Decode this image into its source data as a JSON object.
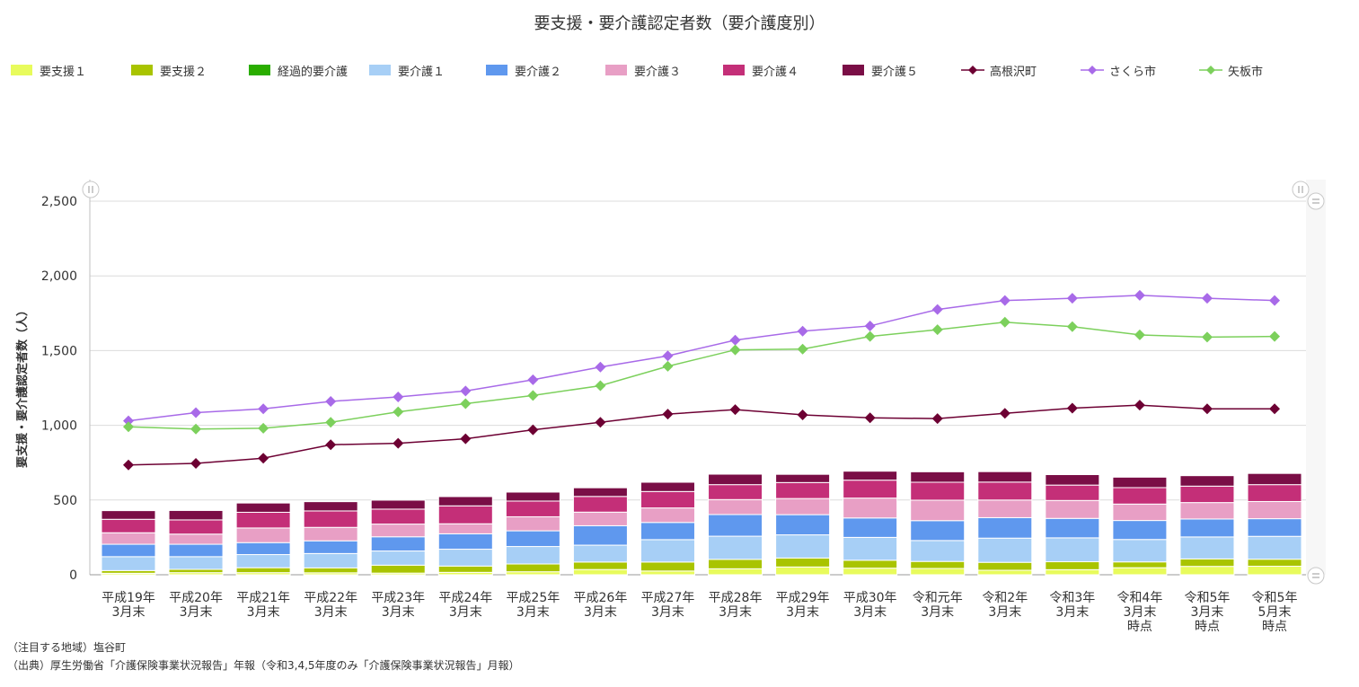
{
  "chart_data": {
    "type": "bar",
    "title": "要支援・要介護認定者数（要介護度別）",
    "ylabel": "要支援・要介護認定者数（人）",
    "xlabel": "",
    "ylim": [
      0,
      2500
    ],
    "yticks": [
      0,
      500,
      1000,
      1500,
      2000,
      2500
    ],
    "ytick_labels": [
      "0",
      "500",
      "1,000",
      "1,500",
      "2,000",
      "2,500"
    ],
    "grid": true,
    "legend": "top",
    "stacked": true,
    "categories": [
      [
        "平成19年",
        "3月末"
      ],
      [
        "平成20年",
        "3月末"
      ],
      [
        "平成21年",
        "3月末"
      ],
      [
        "平成22年",
        "3月末"
      ],
      [
        "平成23年",
        "3月末"
      ],
      [
        "平成24年",
        "3月末"
      ],
      [
        "平成25年",
        "3月末"
      ],
      [
        "平成26年",
        "3月末"
      ],
      [
        "平成27年",
        "3月末"
      ],
      [
        "平成28年",
        "3月末"
      ],
      [
        "平成29年",
        "3月末"
      ],
      [
        "平成30年",
        "3月末"
      ],
      [
        "令和元年",
        "3月末"
      ],
      [
        "令和2年",
        "3月末"
      ],
      [
        "令和3年",
        "3月末"
      ],
      [
        "令和4年",
        "3月末",
        "時点"
      ],
      [
        "令和5年",
        "3月末",
        "時点"
      ],
      [
        "令和5年",
        "5月末",
        "時点"
      ]
    ],
    "series": [
      {
        "name": "要支援１",
        "color": "#e8fb5c",
        "values": [
          10,
          14,
          14,
          13,
          11,
          16,
          20,
          35,
          25,
          40,
          52,
          44,
          42,
          30,
          34,
          47,
          56,
          57
        ]
      },
      {
        "name": "要支援２",
        "color": "#a9c400",
        "values": [
          18,
          22,
          33,
          33,
          53,
          42,
          52,
          50,
          60,
          63,
          60,
          53,
          47,
          53,
          53,
          39,
          50,
          47
        ]
      },
      {
        "name": "経過的要介護",
        "color": "#2aad00",
        "values": [
          0,
          0,
          0,
          0,
          0,
          0,
          0,
          0,
          0,
          0,
          0,
          0,
          0,
          0,
          0,
          0,
          0,
          0
        ]
      },
      {
        "name": "要介護１",
        "color": "#a7cff6",
        "values": [
          93,
          85,
          88,
          96,
          95,
          113,
          117,
          113,
          150,
          155,
          155,
          153,
          140,
          162,
          160,
          150,
          147,
          153
        ]
      },
      {
        "name": "要介護２",
        "color": "#5f98ee",
        "values": [
          83,
          83,
          80,
          85,
          95,
          103,
          105,
          130,
          115,
          145,
          135,
          130,
          133,
          137,
          130,
          127,
          120,
          118
        ]
      },
      {
        "name": "要介護３",
        "color": "#e89fc5",
        "values": [
          77,
          68,
          98,
          90,
          85,
          67,
          94,
          91,
          97,
          100,
          108,
          133,
          137,
          118,
          120,
          110,
          110,
          115
        ]
      },
      {
        "name": "要介護４",
        "color": "#c42f78",
        "values": [
          90,
          95,
          105,
          110,
          100,
          120,
          105,
          105,
          110,
          100,
          107,
          120,
          120,
          120,
          103,
          110,
          110,
          113
        ]
      },
      {
        "name": "要介護５",
        "color": "#7a0e46",
        "values": [
          58,
          63,
          62,
          62,
          60,
          62,
          60,
          58,
          62,
          70,
          55,
          60,
          70,
          70,
          70,
          70,
          70,
          75
        ]
      }
    ],
    "lines": [
      {
        "name": "高根沢町",
        "color": "#6d0033",
        "marker": "diamond",
        "values": [
          735,
          745,
          780,
          870,
          880,
          910,
          970,
          1020,
          1075,
          1105,
          1070,
          1050,
          1045,
          1080,
          1115,
          1135,
          1110,
          1110
        ]
      },
      {
        "name": "さくら市",
        "color": "#a86ae8",
        "marker": "diamond",
        "values": [
          1030,
          1085,
          1110,
          1160,
          1190,
          1230,
          1305,
          1390,
          1465,
          1570,
          1630,
          1665,
          1775,
          1835,
          1850,
          1870,
          1850,
          1835
        ]
      },
      {
        "name": "矢板市",
        "color": "#7cd05c",
        "marker": "diamond",
        "values": [
          990,
          975,
          980,
          1020,
          1090,
          1145,
          1200,
          1265,
          1395,
          1505,
          1510,
          1595,
          1640,
          1690,
          1660,
          1605,
          1590,
          1595
        ]
      }
    ]
  },
  "footnotes": {
    "region": "（注目する地域）塩谷町",
    "source": "（出典）厚生労働省「介護保険事業状況報告」年報（令和3,4,5年度のみ「介護保険事業状況報告」月報）"
  }
}
